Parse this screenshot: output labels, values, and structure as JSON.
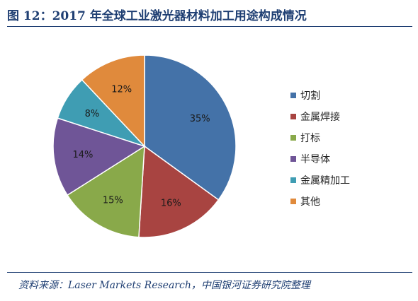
{
  "title": "图 12：2017 年全球工业激光器材料加工用途构成情况",
  "source": "资料来源：Laser Markets Research，中国银河证券研究院整理",
  "chart_data": {
    "type": "pie",
    "slices": [
      {
        "label": "切割",
        "value": 35,
        "display": "35%",
        "color": "#4472a8"
      },
      {
        "label": "金属焊接",
        "value": 16,
        "display": "16%",
        "color": "#a84441"
      },
      {
        "label": "打标",
        "value": 15,
        "display": "15%",
        "color": "#89a94a"
      },
      {
        "label": "半导体",
        "value": 14,
        "display": "14%",
        "color": "#6f5597"
      },
      {
        "label": "金属精加工",
        "value": 8,
        "display": "8%",
        "color": "#3f9db3"
      },
      {
        "label": "其他",
        "value": 12,
        "display": "12%",
        "color": "#e08a3c"
      }
    ],
    "legend_position": "right"
  }
}
